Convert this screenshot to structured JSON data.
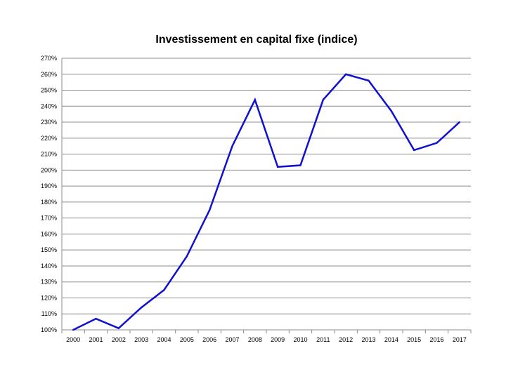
{
  "chart_data": {
    "type": "line",
    "title": "Investissement en capital fixe (indice)",
    "xlabel": "",
    "ylabel": "",
    "categories": [
      "2000",
      "2001",
      "2002",
      "2003",
      "2004",
      "2005",
      "2006",
      "2007",
      "2008",
      "2009",
      "2010",
      "2011",
      "2012",
      "2013",
      "2014",
      "2015",
      "2016",
      "2017"
    ],
    "series": [
      {
        "values": [
          100,
          107,
          101,
          114,
          125,
          146,
          175,
          215,
          244,
          202,
          203,
          244,
          260,
          256,
          237,
          212.5,
          217,
          230
        ],
        "color": "#1010d0"
      }
    ],
    "ylim": [
      100,
      270
    ],
    "y_ticks": [
      "100%",
      "110%",
      "120%",
      "130%",
      "140%",
      "150%",
      "160%",
      "170%",
      "180%",
      "190%",
      "200%",
      "210%",
      "220%",
      "230%",
      "240%",
      "250%",
      "260%",
      "270%"
    ],
    "grid": true,
    "legend": "none"
  }
}
